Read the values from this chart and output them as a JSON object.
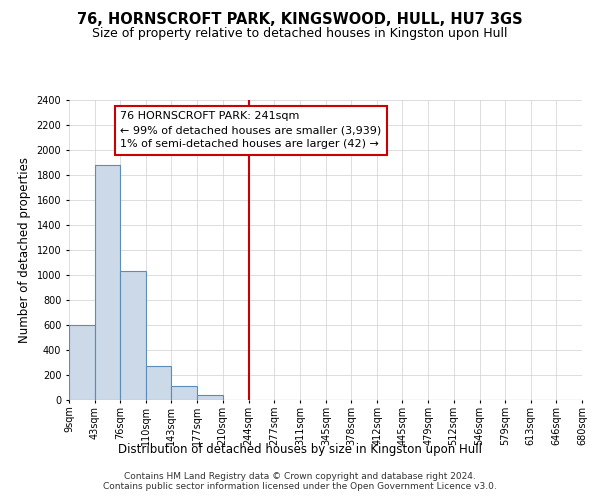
{
  "title": "76, HORNSCROFT PARK, KINGSWOOD, HULL, HU7 3GS",
  "subtitle": "Size of property relative to detached houses in Kingston upon Hull",
  "xlabel": "Distribution of detached houses by size in Kingston upon Hull",
  "ylabel": "Number of detached properties",
  "bin_edges": [
    9,
    43,
    76,
    110,
    143,
    177,
    210,
    244,
    277,
    311,
    345,
    378,
    412,
    445,
    479,
    512,
    546,
    579,
    613,
    646,
    680
  ],
  "bin_counts": [
    600,
    1880,
    1035,
    275,
    115,
    42,
    0,
    0,
    0,
    0,
    0,
    0,
    0,
    0,
    0,
    0,
    0,
    0,
    0,
    0
  ],
  "bar_facecolor": "#ccd9e8",
  "bar_edgecolor": "#5b8db8",
  "grid_color": "#d0d0d0",
  "vline_x": 244,
  "vline_color": "#cc0000",
  "annotation_line1": "76 HORNSCROFT PARK: 241sqm",
  "annotation_line2": "← 99% of detached houses are smaller (3,939)",
  "annotation_line3": "1% of semi-detached houses are larger (42) →",
  "annotation_box_edgecolor": "#cc0000",
  "annotation_box_facecolor": "#ffffff",
  "ylim": [
    0,
    2400
  ],
  "yticks": [
    0,
    200,
    400,
    600,
    800,
    1000,
    1200,
    1400,
    1600,
    1800,
    2000,
    2200,
    2400
  ],
  "tick_labels": [
    "9sqm",
    "43sqm",
    "76sqm",
    "110sqm",
    "143sqm",
    "177sqm",
    "210sqm",
    "244sqm",
    "277sqm",
    "311sqm",
    "345sqm",
    "378sqm",
    "412sqm",
    "445sqm",
    "479sqm",
    "512sqm",
    "546sqm",
    "579sqm",
    "613sqm",
    "646sqm",
    "680sqm"
  ],
  "footnote1": "Contains HM Land Registry data © Crown copyright and database right 2024.",
  "footnote2": "Contains public sector information licensed under the Open Government Licence v3.0.",
  "title_fontsize": 10.5,
  "subtitle_fontsize": 9,
  "label_fontsize": 8.5,
  "tick_fontsize": 7,
  "annotation_fontsize": 8,
  "footnote_fontsize": 6.5
}
